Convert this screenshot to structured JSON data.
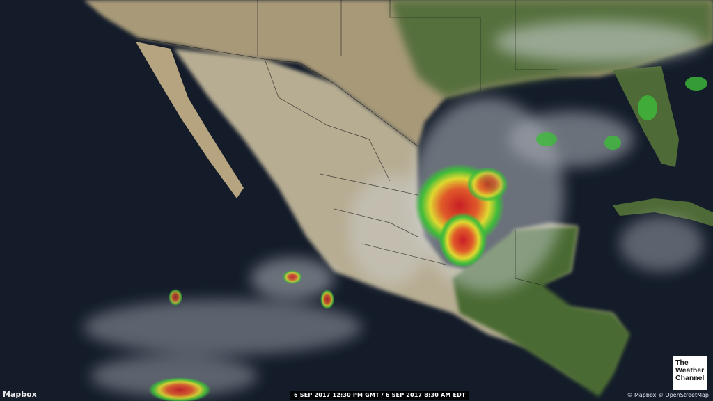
{
  "map": {
    "region": "Gulf of Mexico, Mexico, Central America",
    "layer": "satellite-radar",
    "timestamp": "6 SEP 2017 12:30 PM GMT / 6 SEP 2017 8:30 AM EDT",
    "colors": {
      "ocean": "#141c2a",
      "land_desert": "#b9ab8c",
      "land_green": "#4e6a36",
      "cloud": "#d6dae0",
      "radar_green": "#3dbb3a",
      "radar_yellow": "#e5e02e",
      "radar_red": "#d2322a"
    }
  },
  "branding": {
    "mapbox_logo": "Mapbox",
    "twc_logo": "The Weather Channel",
    "twc_line1": "The",
    "twc_line2": "Weather",
    "twc_line3": "Channel"
  },
  "attribution": {
    "mapbox": "© Mapbox",
    "osm": "© OpenStreetMap"
  }
}
